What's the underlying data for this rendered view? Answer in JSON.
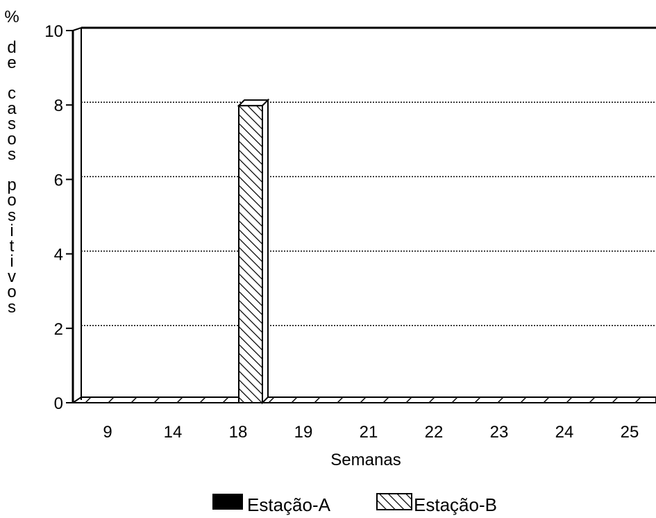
{
  "chart_data": {
    "type": "bar",
    "categories": [
      "9",
      "14",
      "18",
      "19",
      "21",
      "22",
      "23",
      "24",
      "25"
    ],
    "series": [
      {
        "name": "Estação-A",
        "values": [
          0,
          0,
          0,
          0,
          0,
          0,
          0,
          0,
          0
        ],
        "fill": "solid",
        "color": "#000000"
      },
      {
        "name": "Estação-B",
        "values": [
          0,
          0,
          8.3,
          0,
          0,
          0,
          0,
          0,
          0
        ],
        "fill": "hatch",
        "color": "#000000"
      }
    ],
    "xlabel": "Semanas",
    "ylabel": "% de casos positivos",
    "ylim": [
      0,
      10
    ],
    "yticks": [
      "0",
      "2",
      "4",
      "6",
      "8",
      "10"
    ],
    "grid": true,
    "legend": "bottom"
  }
}
